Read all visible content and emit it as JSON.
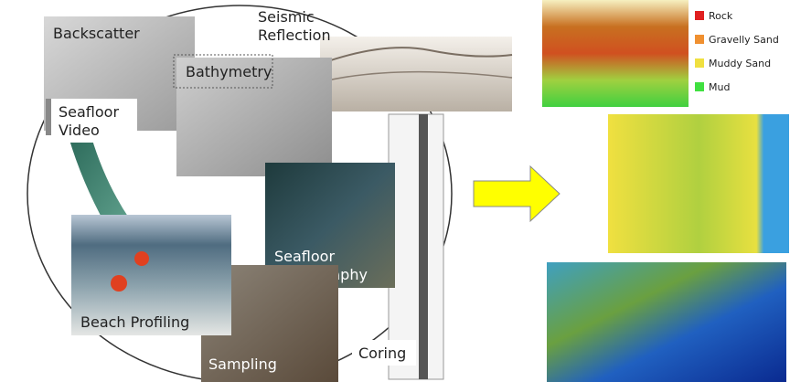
{
  "labels": {
    "backscatter": "Backscatter",
    "seismic": [
      "Seismic",
      "Reflection"
    ],
    "bathymetry": "Bathymetry",
    "video": [
      "Seafloor",
      "Video"
    ],
    "photography": [
      "Seafloor",
      "Photography"
    ],
    "beach": "Beach Profiling",
    "sampling": "Sampling",
    "coring": "Coring"
  },
  "legend": [
    {
      "label": "Rock",
      "color": "#e02020"
    },
    {
      "label": "Gravelly Sand",
      "color": "#f09030"
    },
    {
      "label": "Muddy Sand",
      "color": "#f0e040"
    },
    {
      "label": "Mud",
      "color": "#40e040"
    }
  ]
}
